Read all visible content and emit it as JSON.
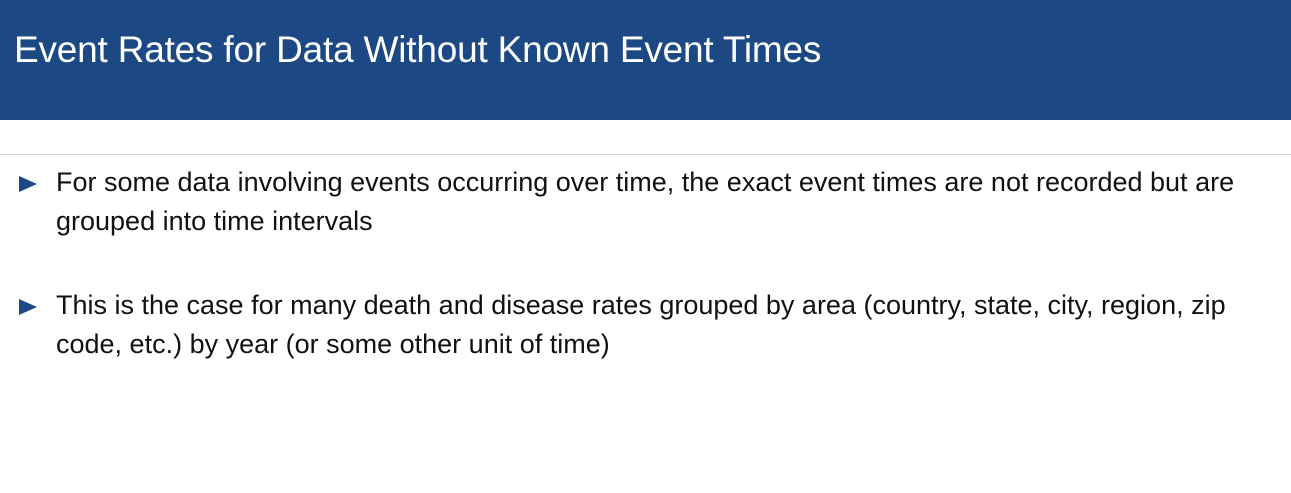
{
  "slide": {
    "title": "Event Rates for Data Without Known Event Times",
    "accent_color": "#1c4983",
    "bullet_icon": "triangle-right-icon",
    "bullets": [
      {
        "text": "For some data involving events occurring over time, the exact event times are not recorded but are grouped into time intervals"
      },
      {
        "text": "This is the case for many death and disease rates grouped by area (country, state, city, region, zip code, etc.) by year (or some other unit of time)"
      }
    ]
  }
}
